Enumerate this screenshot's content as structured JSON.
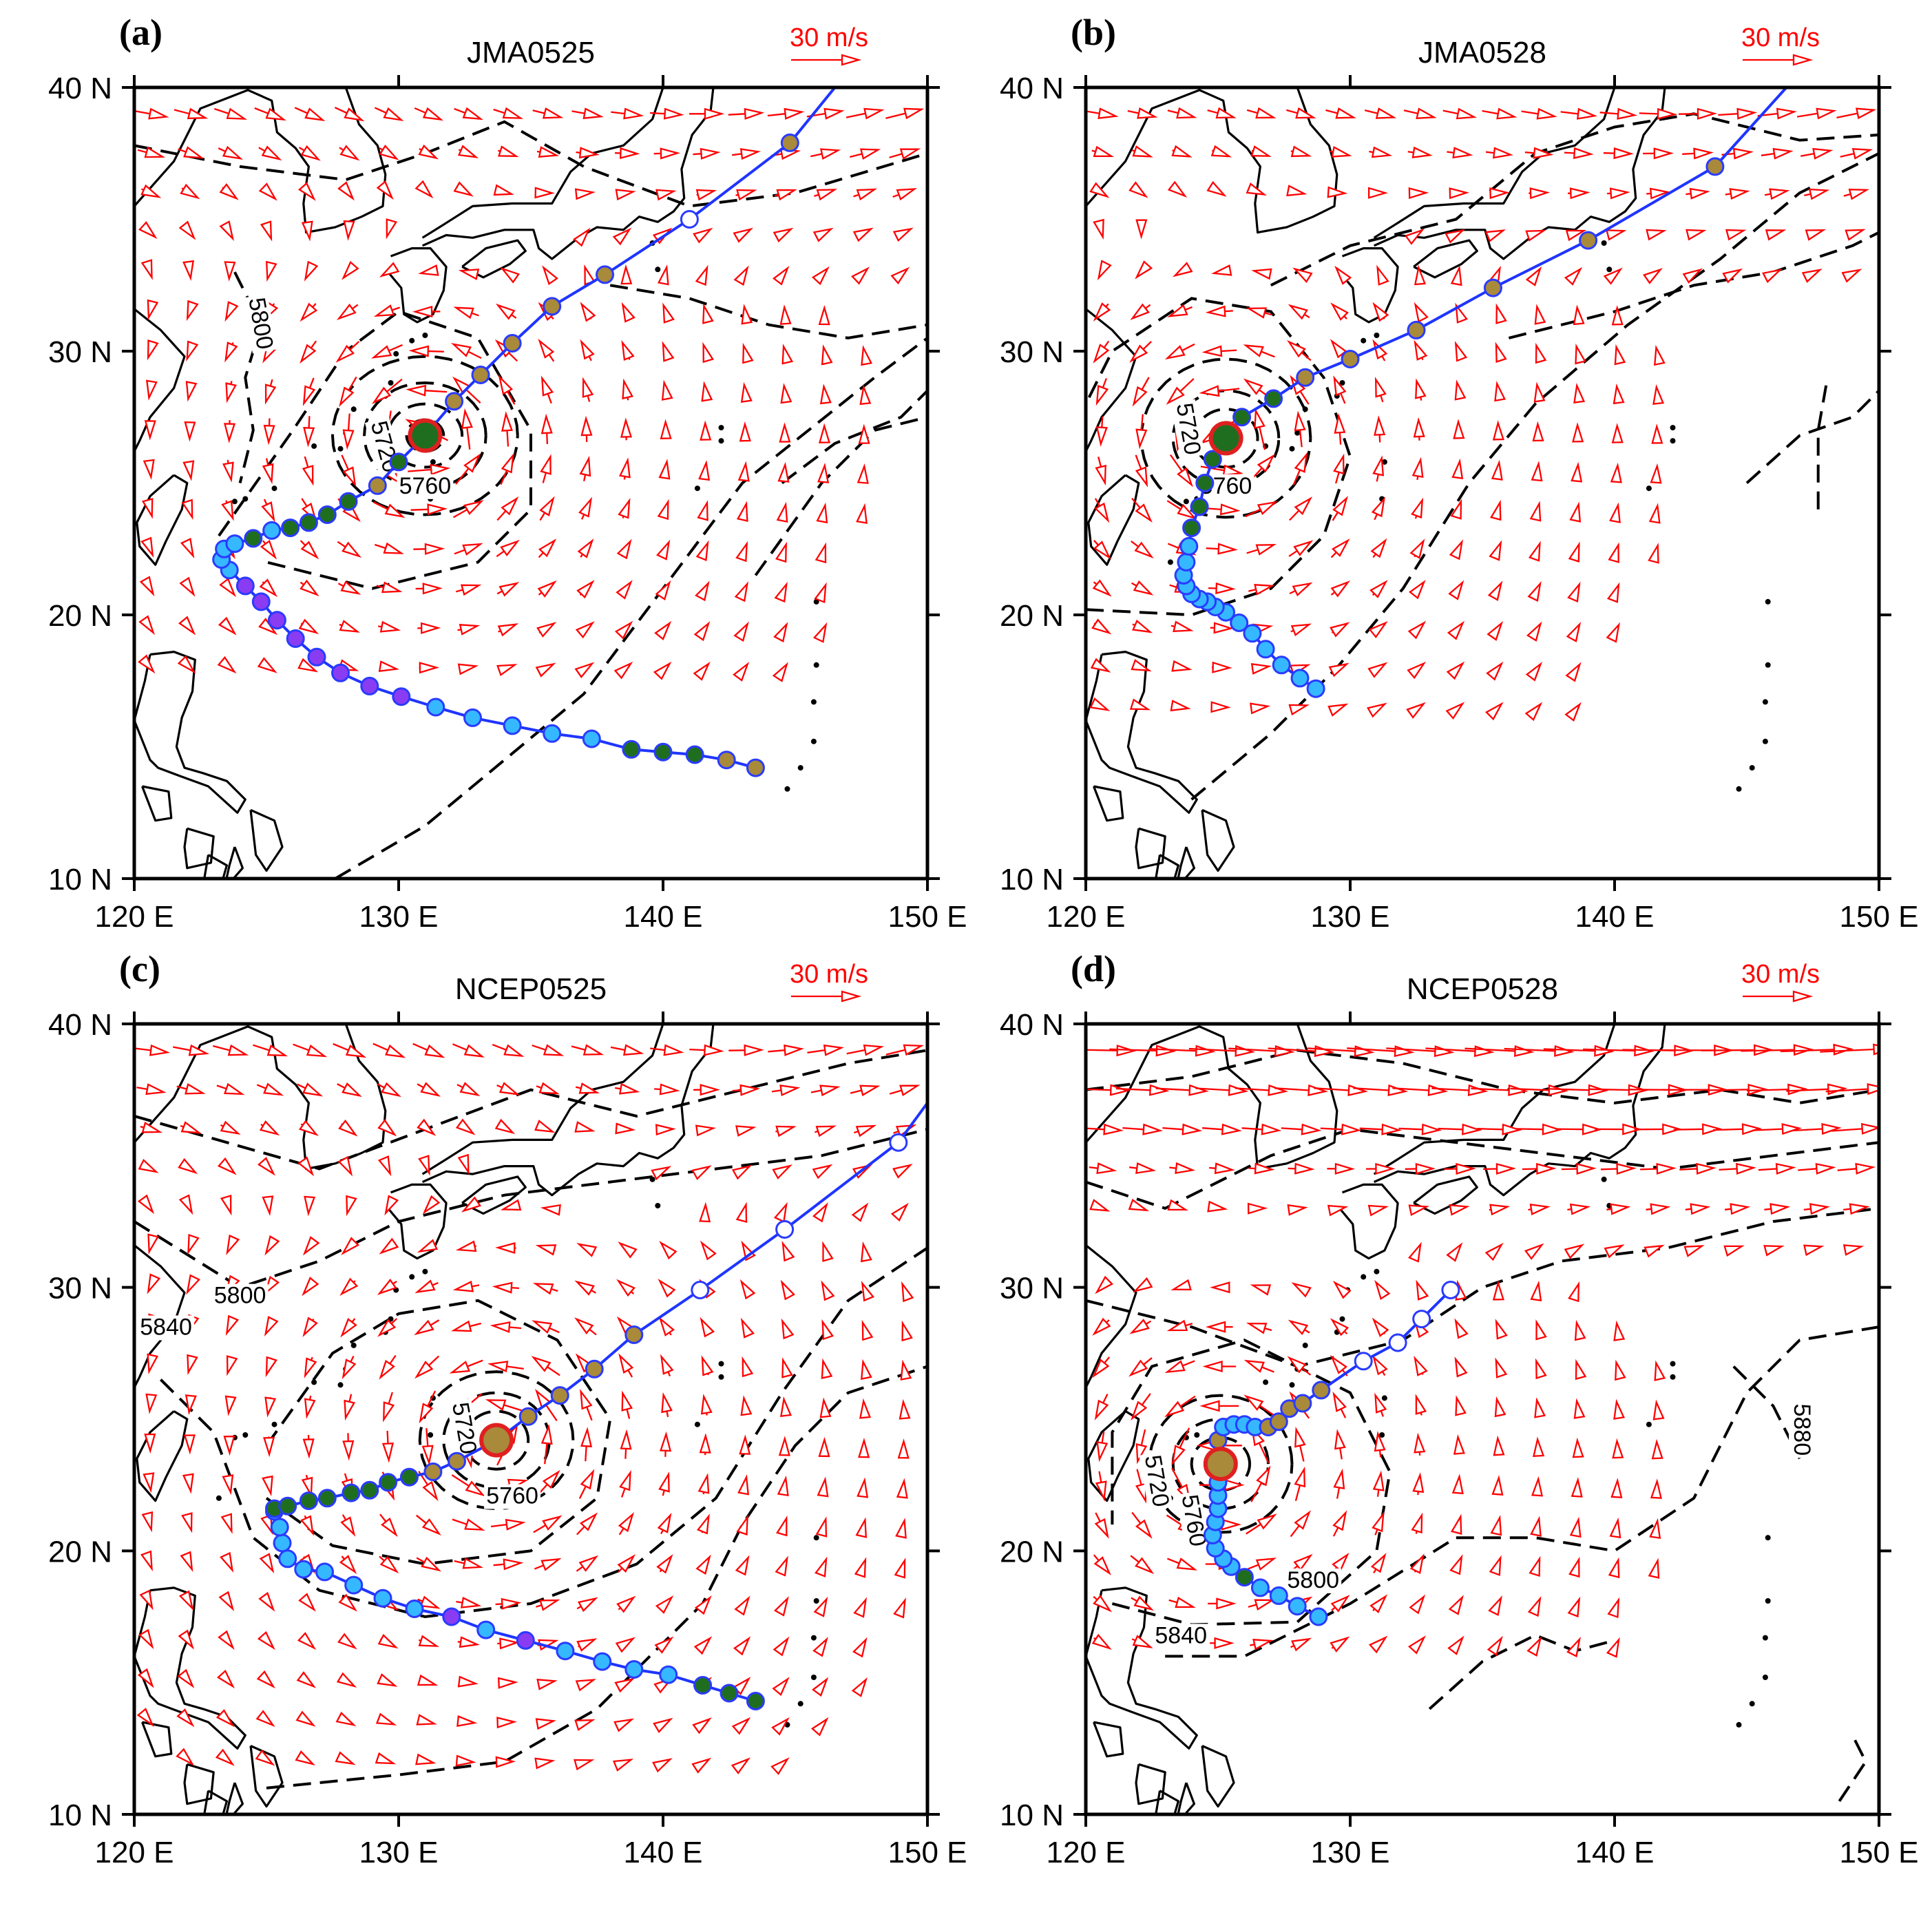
{
  "figure": {
    "panels": [
      {
        "letter": "(a)",
        "title": "JMA0525",
        "scale_label": "30 m/s",
        "x_ticks": [
          "120 E",
          "130 E",
          "140 E",
          "150 E"
        ],
        "y_ticks": [
          "40 N",
          "30 N",
          "20 N",
          "10 N"
        ],
        "contour_labels": [
          "5800",
          "5720",
          "5760"
        ]
      },
      {
        "letter": "(b)",
        "title": "JMA0528",
        "scale_label": "30 m/s",
        "x_ticks": [
          "120 E",
          "130 E",
          "140 E",
          "150 E"
        ],
        "y_ticks": [
          "40 N",
          "30 N",
          "20 N",
          "10 N"
        ],
        "contour_labels": [
          "5720",
          "5760"
        ]
      },
      {
        "letter": "(c)",
        "title": "NCEP0525",
        "scale_label": "30 m/s",
        "x_ticks": [
          "120 E",
          "130 E",
          "140 E",
          "150 E"
        ],
        "y_ticks": [
          "40 N",
          "30 N",
          "20 N",
          "10 N"
        ],
        "contour_labels": [
          "5800",
          "5840",
          "5720",
          "5760"
        ]
      },
      {
        "letter": "(d)",
        "title": "NCEP0528",
        "scale_label": "30 m/s",
        "x_ticks": [
          "120 E",
          "130 E",
          "140 E",
          "150 E"
        ],
        "y_ticks": [
          "40 N",
          "30 N",
          "20 N",
          "10 N"
        ],
        "contour_labels": [
          "5720",
          "5760",
          "5800",
          "5840",
          "5880"
        ]
      }
    ],
    "colors": {
      "track": "#1f35ff",
      "wind_vectors": "#ff0000",
      "point_cyan": "#35b8ff",
      "point_purple": "#8a3cf2",
      "point_green": "#1f6e1f",
      "point_brown": "#a88a3a",
      "point_open": "#ffffff",
      "center_green": "#1f6e1f",
      "center_brown": "#a88a3a",
      "center_ring": "#e02020"
    },
    "tracks": [
      {
        "center": [
          131,
          26.8
        ],
        "center_color": "center_green",
        "points": [
          [
            143.5,
            14.2,
            "brown"
          ],
          [
            142.4,
            14.5,
            "brown"
          ],
          [
            141.2,
            14.7,
            "green"
          ],
          [
            140,
            14.8,
            "green"
          ],
          [
            138.8,
            14.9,
            "green"
          ],
          [
            137.3,
            15.3,
            "cyan"
          ],
          [
            135.8,
            15.5,
            "cyan"
          ],
          [
            134.3,
            15.8,
            "cyan"
          ],
          [
            132.8,
            16.1,
            "cyan"
          ],
          [
            131.4,
            16.5,
            "cyan"
          ],
          [
            130.1,
            16.9,
            "purple"
          ],
          [
            128.9,
            17.3,
            "purple"
          ],
          [
            127.8,
            17.8,
            "purple"
          ],
          [
            126.9,
            18.4,
            "purple"
          ],
          [
            126.1,
            19.1,
            "purple"
          ],
          [
            125.4,
            19.8,
            "purple"
          ],
          [
            124.8,
            20.5,
            "purple"
          ],
          [
            124.2,
            21.1,
            "purple"
          ],
          [
            123.6,
            21.7,
            "cyan"
          ],
          [
            123.3,
            22.1,
            "cyan"
          ],
          [
            123.4,
            22.5,
            "cyan"
          ],
          [
            123.8,
            22.7,
            "cyan"
          ],
          [
            124.5,
            22.9,
            "green"
          ],
          [
            125.2,
            23.2,
            "cyan"
          ],
          [
            125.9,
            23.3,
            "green"
          ],
          [
            126.6,
            23.5,
            "green"
          ],
          [
            127.3,
            23.8,
            "green"
          ],
          [
            128.1,
            24.3,
            "green"
          ],
          [
            129.2,
            24.9,
            "brown"
          ],
          [
            130,
            25.8,
            "green"
          ],
          [
            132.1,
            28.1,
            "brown"
          ],
          [
            133.1,
            29.1,
            "brown"
          ],
          [
            134.3,
            30.3,
            "brown"
          ],
          [
            135.8,
            31.7,
            "brown"
          ],
          [
            137.8,
            32.9,
            "brown"
          ],
          [
            141,
            35,
            "open"
          ],
          [
            144.8,
            37.9,
            "brown"
          ]
        ],
        "end": [
          146.5,
          40
        ]
      },
      {
        "center": [
          125.3,
          26.7
        ],
        "center_color": "center_green",
        "points": [
          [
            128.7,
            17.2,
            "cyan"
          ],
          [
            128.1,
            17.6,
            "cyan"
          ],
          [
            127.4,
            18.1,
            "cyan"
          ],
          [
            126.8,
            18.7,
            "cyan"
          ],
          [
            126.3,
            19.3,
            "cyan"
          ],
          [
            125.8,
            19.7,
            "cyan"
          ],
          [
            125.3,
            20.1,
            "cyan"
          ],
          [
            124.9,
            20.3,
            "cyan"
          ],
          [
            124.6,
            20.5,
            "cyan"
          ],
          [
            124.3,
            20.6,
            "cyan"
          ],
          [
            124,
            20.8,
            "cyan"
          ],
          [
            123.8,
            21.1,
            "cyan"
          ],
          [
            123.7,
            21.5,
            "cyan"
          ],
          [
            123.8,
            22,
            "cyan"
          ],
          [
            123.9,
            22.6,
            "cyan"
          ],
          [
            124,
            23.3,
            "green"
          ],
          [
            124.3,
            24.1,
            "green"
          ],
          [
            124.5,
            25,
            "green"
          ],
          [
            124.8,
            25.9,
            "green"
          ],
          [
            125.9,
            27.5,
            "green"
          ],
          [
            127.1,
            28.2,
            "green"
          ],
          [
            128.3,
            29,
            "brown"
          ],
          [
            130,
            29.7,
            "brown"
          ],
          [
            132.5,
            30.8,
            "brown"
          ],
          [
            135.4,
            32.4,
            "brown"
          ],
          [
            139,
            34.2,
            "brown"
          ],
          [
            143.8,
            37,
            "brown"
          ]
        ],
        "end": [
          146.5,
          40
        ]
      },
      {
        "center": [
          133.7,
          24.2
        ],
        "center_color": "center_brown",
        "points": [
          [
            143.5,
            14.3,
            "green"
          ],
          [
            142.5,
            14.6,
            "green"
          ],
          [
            141.5,
            14.9,
            "green"
          ],
          [
            140.2,
            15.3,
            "cyan"
          ],
          [
            138.9,
            15.5,
            "cyan"
          ],
          [
            137.7,
            15.8,
            "cyan"
          ],
          [
            136.3,
            16.2,
            "cyan"
          ],
          [
            134.8,
            16.6,
            "purple"
          ],
          [
            133.3,
            17,
            "cyan"
          ],
          [
            132,
            17.5,
            "purple"
          ],
          [
            130.6,
            17.8,
            "cyan"
          ],
          [
            129.4,
            18.2,
            "cyan"
          ],
          [
            128.3,
            18.7,
            "cyan"
          ],
          [
            127.2,
            19.2,
            "cyan"
          ],
          [
            126.4,
            19.3,
            "cyan"
          ],
          [
            125.8,
            19.7,
            "cyan"
          ],
          [
            125.6,
            20.3,
            "cyan"
          ],
          [
            125.5,
            20.9,
            "cyan"
          ],
          [
            125.3,
            21.5,
            "cyan"
          ],
          [
            125.3,
            21.6,
            "green"
          ],
          [
            125.8,
            21.7,
            "green"
          ],
          [
            126.6,
            21.9,
            "green"
          ],
          [
            127.3,
            22,
            "green"
          ],
          [
            128.2,
            22.2,
            "green"
          ],
          [
            128.9,
            22.3,
            "green"
          ],
          [
            129.6,
            22.6,
            "green"
          ],
          [
            130.4,
            22.8,
            "green"
          ],
          [
            131.3,
            23,
            "brown"
          ],
          [
            132.2,
            23.4,
            "brown"
          ],
          [
            134.9,
            25.1,
            "brown"
          ],
          [
            136.1,
            25.9,
            "brown"
          ],
          [
            137.4,
            26.9,
            "brown"
          ],
          [
            138.9,
            28.2,
            "brown"
          ],
          [
            141.4,
            29.9,
            "open"
          ],
          [
            144.6,
            32.2,
            "open"
          ],
          [
            148.9,
            35.5,
            "open"
          ]
        ],
        "end": [
          150,
          37
        ]
      },
      {
        "center": [
          125.1,
          23.3
        ],
        "center_color": "center_brown",
        "points": [
          [
            128.8,
            17.5,
            "cyan"
          ],
          [
            128,
            17.9,
            "cyan"
          ],
          [
            127.3,
            18.3,
            "cyan"
          ],
          [
            126.6,
            18.6,
            "cyan"
          ],
          [
            126,
            19,
            "green"
          ],
          [
            125.5,
            19.4,
            "cyan"
          ],
          [
            125.2,
            19.7,
            "cyan"
          ],
          [
            124.9,
            20.1,
            "cyan"
          ],
          [
            124.8,
            20.6,
            "cyan"
          ],
          [
            124.9,
            21.1,
            "cyan"
          ],
          [
            125,
            21.6,
            "cyan"
          ],
          [
            125,
            22.1,
            "cyan"
          ],
          [
            125,
            22.6,
            "cyan"
          ],
          [
            125,
            24.2,
            "brown"
          ],
          [
            125.2,
            24.7,
            "cyan"
          ],
          [
            125.6,
            24.8,
            "cyan"
          ],
          [
            126,
            24.8,
            "cyan"
          ],
          [
            126.4,
            24.7,
            "cyan"
          ],
          [
            126.9,
            24.7,
            "brown"
          ],
          [
            127.3,
            24.9,
            "brown"
          ],
          [
            127.7,
            25.4,
            "brown"
          ],
          [
            128.2,
            25.6,
            "brown"
          ],
          [
            128.9,
            26.1,
            "brown"
          ],
          [
            130.5,
            27.2,
            "open"
          ],
          [
            131.8,
            27.9,
            "open"
          ],
          [
            132.7,
            28.8,
            "open"
          ],
          [
            133.8,
            29.9,
            "open"
          ]
        ]
      }
    ]
  }
}
